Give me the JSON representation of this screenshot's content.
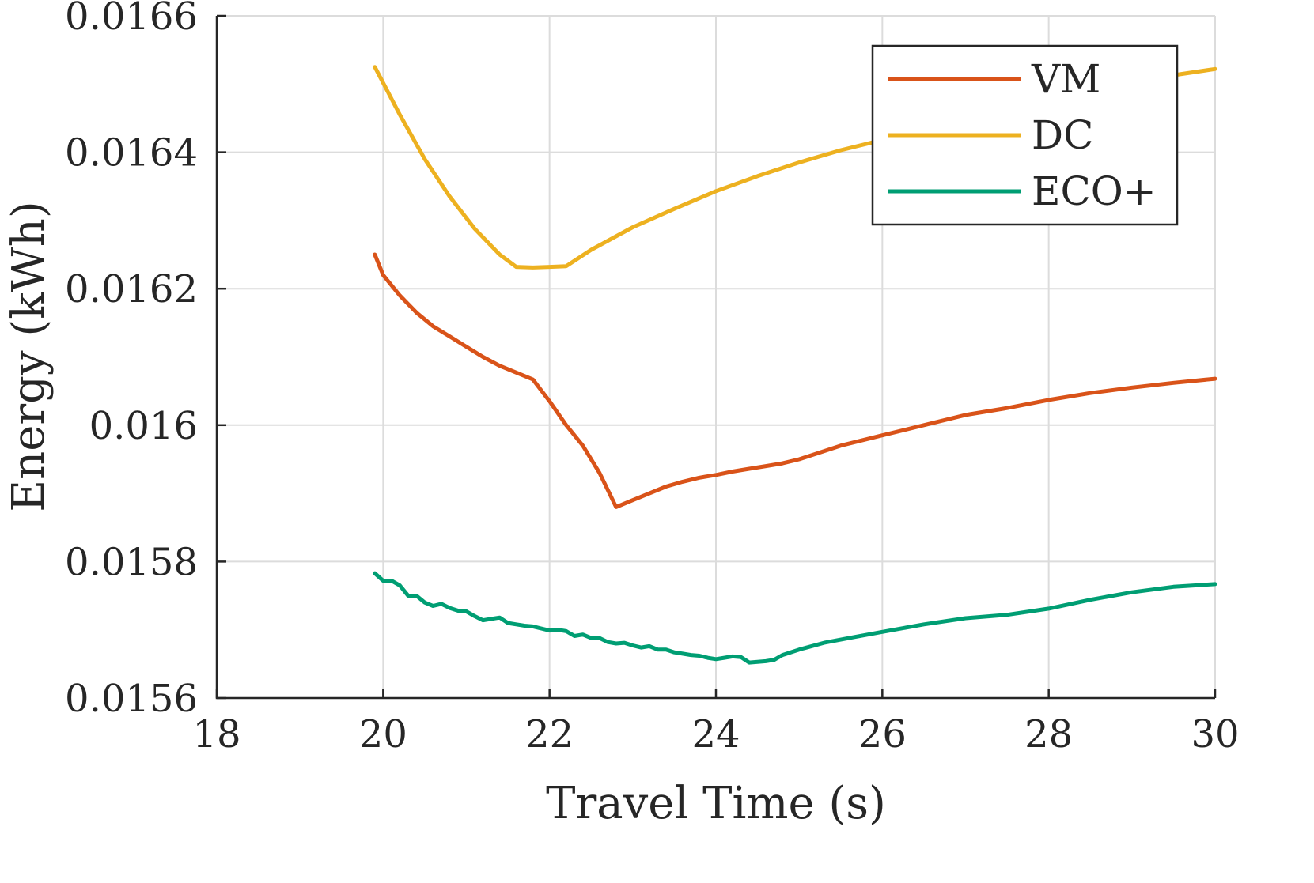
{
  "chart_data": {
    "type": "line",
    "xlabel": "Travel Time (s)",
    "ylabel": "Energy (kWh)",
    "xlim": [
      18,
      30
    ],
    "ylim": [
      0.0156,
      0.0166
    ],
    "xticks": [
      18,
      20,
      22,
      24,
      26,
      28,
      30
    ],
    "xtick_labels": [
      "18",
      "20",
      "22",
      "24",
      "26",
      "28",
      "30"
    ],
    "yticks": [
      0.0156,
      0.0158,
      0.016,
      0.0162,
      0.0164,
      0.0166
    ],
    "ytick_labels": [
      "0.0156",
      "0.0158",
      "0.016",
      "0.0162",
      "0.0164",
      "0.0166"
    ],
    "grid": true,
    "legend_position": "top-right",
    "series": [
      {
        "name": "VM",
        "color": "#D95319",
        "x": [
          19.9,
          20.0,
          20.2,
          20.4,
          20.6,
          20.8,
          21.0,
          21.2,
          21.4,
          21.6,
          21.8,
          22.0,
          22.2,
          22.4,
          22.6,
          22.8,
          23.0,
          23.2,
          23.4,
          23.6,
          23.8,
          24.0,
          24.2,
          24.4,
          24.6,
          24.8,
          25.0,
          25.5,
          26.0,
          26.5,
          27.0,
          27.5,
          28.0,
          28.5,
          29.0,
          29.5,
          30.0
        ],
        "y": [
          0.01625,
          0.01622,
          0.01619,
          0.016165,
          0.016145,
          0.01613,
          0.016115,
          0.0161,
          0.016087,
          0.016077,
          0.016067,
          0.016035,
          0.016,
          0.01597,
          0.01593,
          0.01588,
          0.01589,
          0.0159,
          0.01591,
          0.015917,
          0.015923,
          0.015927,
          0.015932,
          0.015936,
          0.01594,
          0.015944,
          0.01595,
          0.01597,
          0.015985,
          0.016,
          0.016015,
          0.016025,
          0.016037,
          0.016047,
          0.016055,
          0.016062,
          0.016068
        ]
      },
      {
        "name": "DC",
        "color": "#EDB120",
        "x": [
          19.9,
          20.2,
          20.5,
          20.8,
          21.1,
          21.4,
          21.6,
          21.8,
          22.0,
          22.2,
          22.5,
          23.0,
          23.5,
          24.0,
          24.5,
          25.0,
          25.5,
          26.0,
          26.5,
          27.0,
          27.5,
          28.0,
          28.5,
          29.0,
          29.5,
          30.0
        ],
        "y": [
          0.016525,
          0.016455,
          0.01639,
          0.016335,
          0.016288,
          0.01625,
          0.016232,
          0.016231,
          0.016232,
          0.016233,
          0.016257,
          0.01629,
          0.016317,
          0.016343,
          0.016365,
          0.016385,
          0.016403,
          0.016418,
          0.016434,
          0.016448,
          0.016462,
          0.016475,
          0.016488,
          0.016501,
          0.016513,
          0.016522
        ]
      },
      {
        "name": "ECO+",
        "color": "#009E73",
        "x": [
          19.9,
          20.0,
          20.1,
          20.2,
          20.3,
          20.4,
          20.5,
          20.6,
          20.7,
          20.8,
          20.9,
          21.0,
          21.1,
          21.2,
          21.3,
          21.4,
          21.5,
          21.6,
          21.7,
          21.8,
          21.9,
          22.0,
          22.1,
          22.2,
          22.3,
          22.4,
          22.5,
          22.6,
          22.7,
          22.8,
          22.9,
          23.0,
          23.1,
          23.2,
          23.3,
          23.4,
          23.5,
          23.6,
          23.7,
          23.8,
          23.9,
          24.0,
          24.1,
          24.2,
          24.3,
          24.4,
          24.5,
          24.6,
          24.7,
          24.8,
          25.0,
          25.3,
          25.6,
          26.0,
          26.5,
          27.0,
          27.5,
          28.0,
          28.5,
          29.0,
          29.5,
          30.0
        ],
        "y": [
          0.015783,
          0.015772,
          0.015772,
          0.015765,
          0.01575,
          0.01575,
          0.01574,
          0.015735,
          0.015738,
          0.015732,
          0.015728,
          0.015727,
          0.01572,
          0.015714,
          0.015716,
          0.015718,
          0.01571,
          0.015708,
          0.015706,
          0.015705,
          0.015702,
          0.015699,
          0.0157,
          0.015698,
          0.015691,
          0.015693,
          0.015688,
          0.015688,
          0.015682,
          0.01568,
          0.015681,
          0.015677,
          0.015674,
          0.015676,
          0.015671,
          0.015671,
          0.015667,
          0.015665,
          0.015663,
          0.015662,
          0.015659,
          0.015657,
          0.015659,
          0.015661,
          0.01566,
          0.015652,
          0.015653,
          0.015654,
          0.015656,
          0.015663,
          0.015671,
          0.015681,
          0.015688,
          0.015697,
          0.015708,
          0.015717,
          0.015722,
          0.015731,
          0.015744,
          0.015755,
          0.015763,
          0.015767
        ]
      }
    ]
  }
}
